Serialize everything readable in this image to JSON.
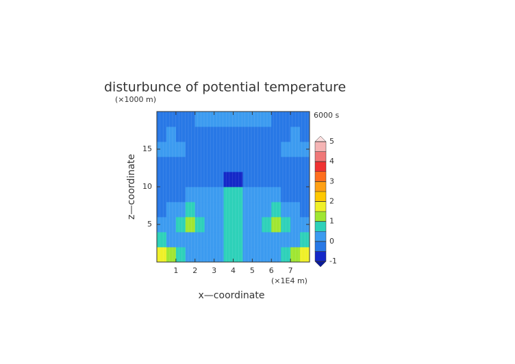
{
  "chart_data": {
    "type": "contour",
    "title": "disturbunce of potential temperature",
    "y_unit": "(×1000 m)",
    "x_unit": "(×1E4 m)",
    "time_label": "6000 s",
    "x_label": "x—coordinate",
    "y_label": "z—coordinate",
    "xlim": [
      0,
      8
    ],
    "ylim": [
      0,
      20
    ],
    "xticks": [
      1,
      2,
      3,
      4,
      5,
      6,
      7
    ],
    "yticks": [
      5,
      10,
      15
    ],
    "x": [
      0.25,
      0.75,
      1.25,
      1.75,
      2.25,
      2.75,
      3.25,
      3.75,
      4.25,
      4.75,
      5.25,
      5.75,
      6.25,
      6.75,
      7.25,
      7.75
    ],
    "y": [
      1,
      3,
      5,
      7,
      9,
      11,
      13,
      15,
      17,
      19
    ],
    "z": [
      [
        1.6,
        1.2,
        0.5,
        0.2,
        0.1,
        0.1,
        0.0,
        0.6,
        0.6,
        0.0,
        0.1,
        0.1,
        0.2,
        0.5,
        1.2,
        1.6
      ],
      [
        0.6,
        0.4,
        0.2,
        0.1,
        0.0,
        0.0,
        0.0,
        0.7,
        0.7,
        0.0,
        0.0,
        0.0,
        0.1,
        0.2,
        0.4,
        0.6
      ],
      [
        0.1,
        0.3,
        0.8,
        1.3,
        0.6,
        0.1,
        0.0,
        0.8,
        0.8,
        0.0,
        0.1,
        0.6,
        1.3,
        0.8,
        0.3,
        0.1
      ],
      [
        -0.2,
        0.1,
        0.3,
        0.5,
        0.2,
        0.1,
        0.1,
        0.7,
        0.7,
        0.1,
        0.1,
        0.2,
        0.5,
        0.3,
        0.1,
        -0.2
      ],
      [
        -0.2,
        -0.2,
        -0.1,
        0.0,
        0.1,
        0.1,
        0.1,
        0.6,
        0.6,
        0.1,
        0.1,
        0.1,
        0.0,
        -0.1,
        -0.2,
        -0.2
      ],
      [
        -0.2,
        -0.2,
        -0.2,
        -0.2,
        -0.2,
        -0.2,
        -0.2,
        -0.6,
        -0.6,
        -0.2,
        -0.2,
        -0.2,
        -0.2,
        -0.2,
        -0.2,
        -0.2
      ],
      [
        -0.2,
        -0.2,
        -0.2,
        -0.2,
        -0.2,
        -0.2,
        -0.2,
        -0.2,
        -0.2,
        -0.2,
        -0.2,
        -0.2,
        -0.2,
        -0.2,
        -0.2,
        -0.2
      ],
      [
        0.1,
        0.2,
        0.1,
        -0.2,
        -0.2,
        -0.2,
        -0.2,
        -0.2,
        -0.2,
        -0.2,
        -0.2,
        -0.2,
        -0.2,
        0.1,
        0.2,
        0.1
      ],
      [
        -0.2,
        0.1,
        -0.2,
        -0.2,
        -0.2,
        -0.2,
        -0.2,
        -0.2,
        -0.2,
        -0.2,
        -0.2,
        -0.2,
        -0.2,
        -0.2,
        0.1,
        -0.2
      ],
      [
        -0.2,
        -0.2,
        -0.2,
        -0.2,
        0.1,
        0.1,
        0.1,
        0.1,
        0.1,
        0.1,
        0.1,
        0.1,
        -0.2,
        -0.2,
        -0.2,
        -0.2
      ]
    ],
    "clim": [
      -1,
      5
    ],
    "cticks": [
      -1,
      0,
      1,
      2,
      3,
      4,
      5
    ],
    "colors": [
      "#1428c8",
      "#2878e6",
      "#3c9bf0",
      "#2ed1b9",
      "#a0e632",
      "#f0f028",
      "#ffc800",
      "#ffa014",
      "#ff6e1e",
      "#f03232",
      "#f07878",
      "#f5b4b4"
    ],
    "under_color": "#0a1a9a",
    "over_color": "#fbe0e0"
  }
}
